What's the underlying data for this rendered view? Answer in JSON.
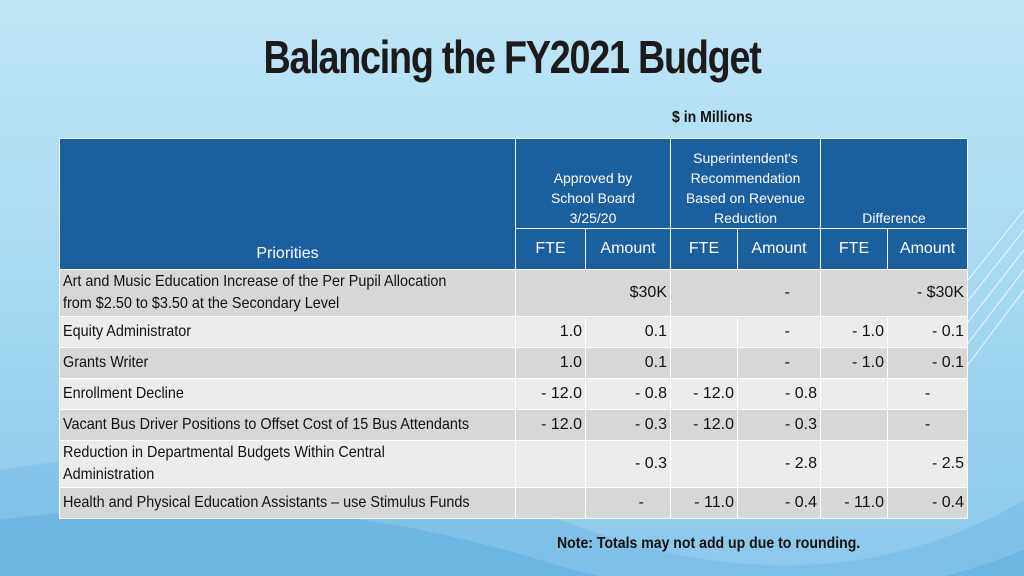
{
  "slide": {
    "title": "Balancing the FY2021 Budget",
    "units": "$ in Millions",
    "note": "Note:  Totals may not add up due to rounding."
  },
  "table": {
    "priorities_header": "Priorities",
    "group_headers": {
      "approved": [
        "Approved by",
        "School Board",
        "3/25/20"
      ],
      "recommendation": [
        "Superintendent's",
        "Recommendation",
        "Based on Revenue",
        "Reduction"
      ],
      "difference": "Difference"
    },
    "sub_headers": [
      "FTE",
      "Amount",
      "FTE",
      "Amount",
      "FTE",
      "Amount"
    ],
    "rows": [
      {
        "priority": [
          "Art and Music Education Increase of the Per Pupil Allocation",
          "from $2.50 to $3.50 at the Secondary Level"
        ],
        "approved_fte": "",
        "approved_amount": "$30K",
        "rec_fte": "",
        "rec_amount": "-",
        "diff_fte": "",
        "diff_amount": "- $30K"
      },
      {
        "priority": [
          "Equity Administrator"
        ],
        "approved_fte": "1.0",
        "approved_amount": "0.1",
        "rec_fte": "",
        "rec_amount": "-",
        "diff_fte": "- 1.0",
        "diff_amount": "- 0.1"
      },
      {
        "priority": [
          "Grants Writer"
        ],
        "approved_fte": "1.0",
        "approved_amount": "0.1",
        "rec_fte": "",
        "rec_amount": "-",
        "diff_fte": "- 1.0",
        "diff_amount": "- 0.1"
      },
      {
        "priority": [
          "Enrollment Decline"
        ],
        "approved_fte": "- 12.0",
        "approved_amount": "- 0.8",
        "rec_fte": "- 12.0",
        "rec_amount": "- 0.8",
        "diff_fte": "",
        "diff_amount": "-"
      },
      {
        "priority": [
          "Vacant Bus Driver Positions to Offset Cost of 15 Bus Attendants"
        ],
        "approved_fte": "- 12.0",
        "approved_amount": "- 0.3",
        "rec_fte": "- 12.0",
        "rec_amount": "- 0.3",
        "diff_fte": "",
        "diff_amount": "-"
      },
      {
        "priority": [
          "Reduction in Departmental Budgets Within Central",
          "Administration"
        ],
        "approved_fte": "",
        "approved_amount": "- 0.3",
        "rec_fte": "",
        "rec_amount": "- 2.8",
        "diff_fte": "",
        "diff_amount": "- 2.5"
      },
      {
        "priority": [
          "Health and Physical Education Assistants – use Stimulus Funds"
        ],
        "approved_fte": "",
        "approved_amount": "-",
        "rec_fte": "- 11.0",
        "rec_amount": "- 0.4",
        "diff_fte": "- 11.0",
        "diff_amount": "- 0.4"
      }
    ]
  },
  "colors": {
    "header_bg": "#1a5f9e",
    "row_dark": "#d7d7d7",
    "row_light": "#ececec",
    "background": "#a9daf2"
  }
}
